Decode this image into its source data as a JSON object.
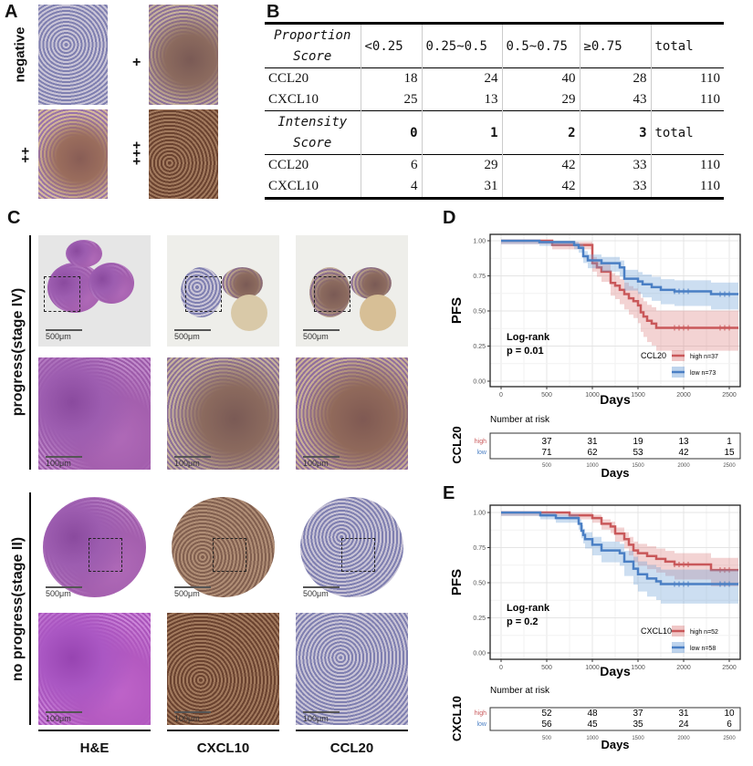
{
  "panel_labels": {
    "a": "A",
    "b": "B",
    "c": "C",
    "d": "D",
    "e": "E"
  },
  "panel_a": {
    "labels": [
      "negative",
      "+",
      "++",
      "+++"
    ]
  },
  "panel_b": {
    "proportion_header": [
      "Proportion Score",
      "<0.25",
      "0.25~0.5",
      "0.5~0.75",
      "≥0.75",
      "total"
    ],
    "proportion_rows": [
      {
        "label": "CCL20",
        "values": [
          "18",
          "24",
          "40",
          "28",
          "110"
        ]
      },
      {
        "label": "CXCL10",
        "values": [
          "25",
          "13",
          "29",
          "43",
          "110"
        ]
      }
    ],
    "intensity_header": [
      "Intensity Score",
      "0",
      "1",
      "2",
      "3",
      "total"
    ],
    "intensity_rows": [
      {
        "label": "CCL20",
        "values": [
          "6",
          "29",
          "42",
          "33",
          "110"
        ]
      },
      {
        "label": "CXCL10",
        "values": [
          "4",
          "31",
          "42",
          "33",
          "110"
        ]
      }
    ]
  },
  "panel_c": {
    "row_labels": [
      "progress(stage IV)",
      "no progress(stage II)"
    ],
    "column_labels": [
      "H&E",
      "CXCL10",
      "CCL20"
    ],
    "scale_overview": "500μm",
    "scale_zoom": "100μm"
  },
  "chart_data": [
    {
      "type": "line",
      "subtype": "kaplan-meier step with confidence bands",
      "ylabel": "PFS",
      "xlabel": "Days",
      "xlim": [
        0,
        2600
      ],
      "ylim": [
        0,
        1
      ],
      "xticks": [
        "0",
        "500",
        "1000",
        "1500",
        "2000",
        "2500"
      ],
      "yticks": [
        "0.00",
        "0.25",
        "0.50",
        "0.75",
        "1.00"
      ],
      "grid": true,
      "annotation": [
        "Log-rank",
        "p = 0.01"
      ],
      "legend_title": "CCL20",
      "legend_position": "bottom-right",
      "series": [
        {
          "name": "high n=37",
          "color": "#c9585a",
          "x": [
            0,
            560,
            1000,
            1050,
            1100,
            1200,
            1250,
            1300,
            1350,
            1400,
            1450,
            1500,
            1530,
            1560,
            1600,
            1650,
            1700,
            2600
          ],
          "y": [
            1,
            0.97,
            0.84,
            0.81,
            0.78,
            0.7,
            0.68,
            0.65,
            0.62,
            0.59,
            0.57,
            0.54,
            0.49,
            0.46,
            0.43,
            0.41,
            0.38,
            0.38
          ]
        },
        {
          "name": "low n=73",
          "color": "#4a7fc4",
          "x": [
            0,
            420,
            800,
            850,
            900,
            950,
            1100,
            1300,
            1350,
            1500,
            1550,
            1650,
            1750,
            1900,
            2300,
            2600
          ],
          "y": [
            1,
            0.99,
            0.97,
            0.95,
            0.89,
            0.86,
            0.84,
            0.81,
            0.73,
            0.71,
            0.69,
            0.67,
            0.65,
            0.64,
            0.62,
            0.62
          ]
        }
      ],
      "risk_table": {
        "title": "Number at risk",
        "group_label": "CCL20",
        "xlabel": "Days",
        "x": [
          "500",
          "1000",
          "1500",
          "2000",
          "2500"
        ],
        "rows": [
          {
            "label": "high",
            "values": [
              "37",
              "31",
              "19",
              "13",
              "1"
            ]
          },
          {
            "label": "low",
            "values": [
              "71",
              "62",
              "53",
              "42",
              "15"
            ]
          }
        ]
      }
    },
    {
      "type": "line",
      "subtype": "kaplan-meier step with confidence bands",
      "ylabel": "PFS",
      "xlabel": "Days",
      "xlim": [
        0,
        2600
      ],
      "ylim": [
        0,
        1
      ],
      "xticks": [
        "0",
        "500",
        "1000",
        "1500",
        "2000",
        "2500"
      ],
      "yticks": [
        "0.00",
        "0.25",
        "0.50",
        "0.75",
        "1.00"
      ],
      "grid": true,
      "annotation": [
        "Log-rank",
        "p = 0.2"
      ],
      "legend_title": "CXCL10",
      "legend_position": "bottom-right",
      "series": [
        {
          "name": "high n=52",
          "color": "#c9585a",
          "x": [
            0,
            750,
            1000,
            1100,
            1200,
            1250,
            1350,
            1400,
            1450,
            1500,
            1600,
            1700,
            1800,
            1900,
            2300,
            2600
          ],
          "y": [
            1,
            0.98,
            0.96,
            0.92,
            0.9,
            0.85,
            0.81,
            0.77,
            0.73,
            0.71,
            0.69,
            0.67,
            0.65,
            0.63,
            0.59,
            0.59
          ]
        },
        {
          "name": "low n=58",
          "color": "#4a7fc4",
          "x": [
            0,
            430,
            600,
            850,
            880,
            900,
            920,
            1000,
            1100,
            1300,
            1350,
            1450,
            1500,
            1600,
            1700,
            1750,
            2600
          ],
          "y": [
            1,
            0.98,
            0.96,
            0.92,
            0.87,
            0.84,
            0.81,
            0.77,
            0.73,
            0.71,
            0.65,
            0.6,
            0.56,
            0.53,
            0.51,
            0.49,
            0.49
          ]
        }
      ],
      "risk_table": {
        "title": "Number at risk",
        "group_label": "CXCL10",
        "xlabel": "Days",
        "x": [
          "500",
          "1000",
          "1500",
          "2000",
          "2500"
        ],
        "rows": [
          {
            "label": "high",
            "values": [
              "52",
              "48",
              "37",
              "31",
              "10"
            ]
          },
          {
            "label": "low",
            "values": [
              "56",
              "45",
              "35",
              "24",
              "6"
            ]
          }
        ]
      }
    }
  ]
}
